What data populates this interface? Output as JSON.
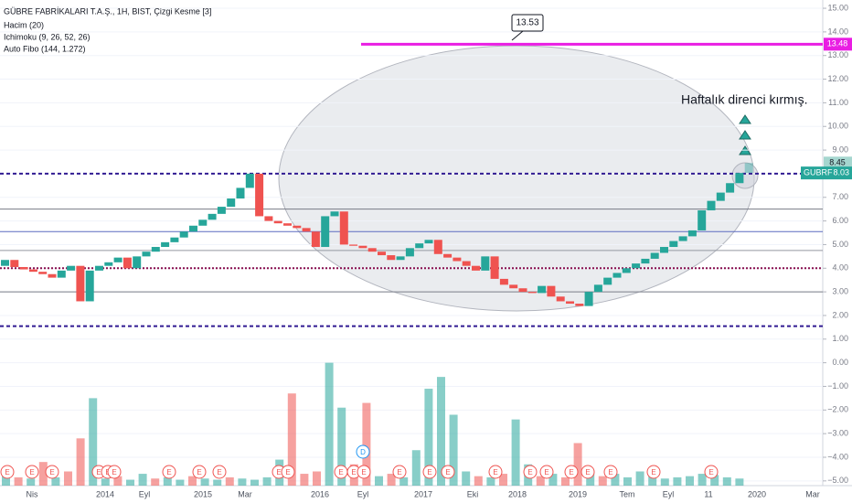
{
  "chart_data": {
    "type": "line-break",
    "title": "GÜBRE FABRİKALARI T.A.Ş., 1H, BIST, Çizgi Kesme [3]",
    "indicators": [
      "Hacim (20)",
      "Ichimoku (9, 26, 52, 26)",
      "Auto Fibo (144, 1.272)"
    ],
    "annotation": "Haftalık direnci kırmış.",
    "callout": 13.53,
    "resistance": {
      "value": 13.48,
      "color": "#e91ee3"
    },
    "symbol": "GUBRF",
    "last_price": 8.03,
    "preview_price": 8.45,
    "up_color": "#26a69a",
    "down_color": "#ef5350",
    "open": [
      4.1,
      4.35,
      4.05,
      3.95,
      3.85,
      3.75,
      3.6,
      3.9,
      4.1,
      2.6,
      3.9,
      4.1,
      4.25,
      4.45,
      4.0,
      4.5,
      4.7,
      4.9,
      5.1,
      5.3,
      5.55,
      5.8,
      6.05,
      6.3,
      6.6,
      6.95,
      7.4,
      8.0,
      6.2,
      6.0,
      5.9,
      5.8,
      5.7,
      5.55,
      4.9,
      6.2,
      6.4,
      5.0,
      4.95,
      4.85,
      4.7,
      4.55,
      4.35,
      4.5,
      4.85,
      5.05,
      5.2,
      4.6,
      4.45,
      4.3,
      4.1,
      3.9,
      4.5,
      3.55,
      3.3,
      3.15,
      3.0,
      2.95,
      3.25,
      2.8,
      2.6,
      2.5,
      2.4,
      3.0,
      3.3,
      3.6,
      3.8,
      4.0,
      4.2,
      4.4,
      4.65,
      4.9,
      5.15,
      5.35,
      5.6,
      6.45,
      6.85,
      7.2,
      7.6
    ],
    "close": [
      4.35,
      4.05,
      3.95,
      3.85,
      3.75,
      3.6,
      3.9,
      4.1,
      2.6,
      3.9,
      4.1,
      4.25,
      4.45,
      4.0,
      4.5,
      4.7,
      4.9,
      5.1,
      5.3,
      5.55,
      5.8,
      6.05,
      6.3,
      6.6,
      6.95,
      7.4,
      8.0,
      6.2,
      6.0,
      5.9,
      5.8,
      5.7,
      5.55,
      4.9,
      6.2,
      6.4,
      5.0,
      4.95,
      4.85,
      4.7,
      4.55,
      4.35,
      4.5,
      4.85,
      5.05,
      5.2,
      4.6,
      4.45,
      4.3,
      4.1,
      3.9,
      4.5,
      3.55,
      3.3,
      3.15,
      3.0,
      2.95,
      3.25,
      2.8,
      2.6,
      2.5,
      2.4,
      3.0,
      3.3,
      3.6,
      3.8,
      4.0,
      4.2,
      4.4,
      4.65,
      4.9,
      5.15,
      5.35,
      5.6,
      6.45,
      6.85,
      7.2,
      7.6,
      8.03
    ],
    "volume_base": -5.2,
    "volume_up": [
      -4.8,
      null,
      -4.9,
      null,
      -4.85,
      null,
      null,
      -1.5,
      -4.9,
      null,
      -4.95,
      -4.7,
      null,
      -4.85,
      -4.95,
      null,
      -4.9,
      -4.95,
      null,
      -4.9,
      -4.95,
      -4.85,
      -4.1,
      null,
      null,
      null,
      0,
      -1.9,
      null,
      null,
      -4.8,
      null,
      -4.85,
      -3.7,
      -1.1,
      -0.6,
      -2.2,
      -4.6,
      null,
      -4.85,
      null,
      -2.4,
      -4.3,
      null,
      -4.7,
      null,
      null,
      -4.6,
      null,
      -4.7,
      -4.85,
      -4.6,
      -4.8,
      -4.9,
      -4.85,
      -4.8,
      -4.7,
      -4.75,
      -4.85,
      -4.9
    ],
    "volume_down": [
      null,
      -4.85,
      null,
      -4.2,
      null,
      -4.6,
      -3.2,
      null,
      null,
      -4.8,
      null,
      null,
      -4.9,
      null,
      null,
      -4.8,
      null,
      null,
      -4.85,
      null,
      null,
      null,
      null,
      -1.3,
      -4.7,
      -4.6,
      null,
      null,
      -4.3,
      -1.7,
      null,
      -4.7,
      null,
      null,
      null,
      null,
      null,
      null,
      -4.8,
      null,
      -4.7,
      null,
      null,
      -4.8,
      null,
      -4.85,
      -3.4,
      null,
      -4.8,
      null,
      null,
      null,
      null,
      null,
      null,
      null,
      null,
      null,
      null,
      null
    ],
    "levels": [
      {
        "value": 8.0,
        "color": "#311b92",
        "style": "dashed"
      },
      {
        "value": 6.5,
        "color": "#787b86",
        "style": "solid"
      },
      {
        "value": 5.55,
        "color": "#5c6bc0",
        "style": "solid"
      },
      {
        "value": 4.75,
        "color": "#9598a1",
        "style": "solid"
      },
      {
        "value": 4.0,
        "color": "#880e4f",
        "style": "dotted"
      },
      {
        "value": 3.0,
        "color": "#787b86",
        "style": "solid"
      },
      {
        "value": 1.55,
        "color": "#311b92",
        "style": "dashed"
      }
    ],
    "ylim": [
      -5.2,
      15.35
    ],
    "yticks": [
      {
        "value": 15,
        "label": "15.00"
      },
      {
        "value": 14,
        "label": "14.00"
      },
      {
        "value": 13,
        "label": "13.00"
      },
      {
        "value": 12,
        "label": "12.00"
      },
      {
        "value": 11,
        "label": "11.00"
      },
      {
        "value": 10,
        "label": "10.00"
      },
      {
        "value": 9,
        "label": "9.00"
      },
      {
        "value": 8,
        "label": "8.00"
      },
      {
        "value": 7,
        "label": "7.00"
      },
      {
        "value": 6,
        "label": "6.00"
      },
      {
        "value": 5,
        "label": "5.00"
      },
      {
        "value": 4,
        "label": "4.00"
      },
      {
        "value": 3,
        "label": "3.00"
      },
      {
        "value": 2,
        "label": "2.00"
      },
      {
        "value": 1,
        "label": "1.00"
      },
      {
        "value": 0,
        "label": "0.00"
      },
      {
        "value": -1,
        "label": "−1.00"
      },
      {
        "value": -2,
        "label": "−2.00"
      },
      {
        "value": -3,
        "label": "−3.00"
      },
      {
        "value": -4,
        "label": "−4.00"
      },
      {
        "value": -5,
        "label": "−5.00"
      }
    ],
    "xtick_labels": [
      "Nis",
      "2014",
      "Eyl",
      "2015",
      "Mar",
      "2016",
      "Eyl",
      "2017",
      "Eki",
      "2018",
      "2019",
      "Tem",
      "Eyl",
      "11",
      "2020",
      "Mar"
    ],
    "events": [
      "E",
      "E",
      "E",
      "E",
      "E",
      "E",
      "E",
      "E",
      "E",
      "E",
      "E",
      "E",
      "E",
      "E",
      "E",
      "E",
      "E",
      "E",
      "E",
      "E",
      "E",
      "E",
      "E",
      "E",
      "E",
      "D"
    ],
    "grid": true
  }
}
